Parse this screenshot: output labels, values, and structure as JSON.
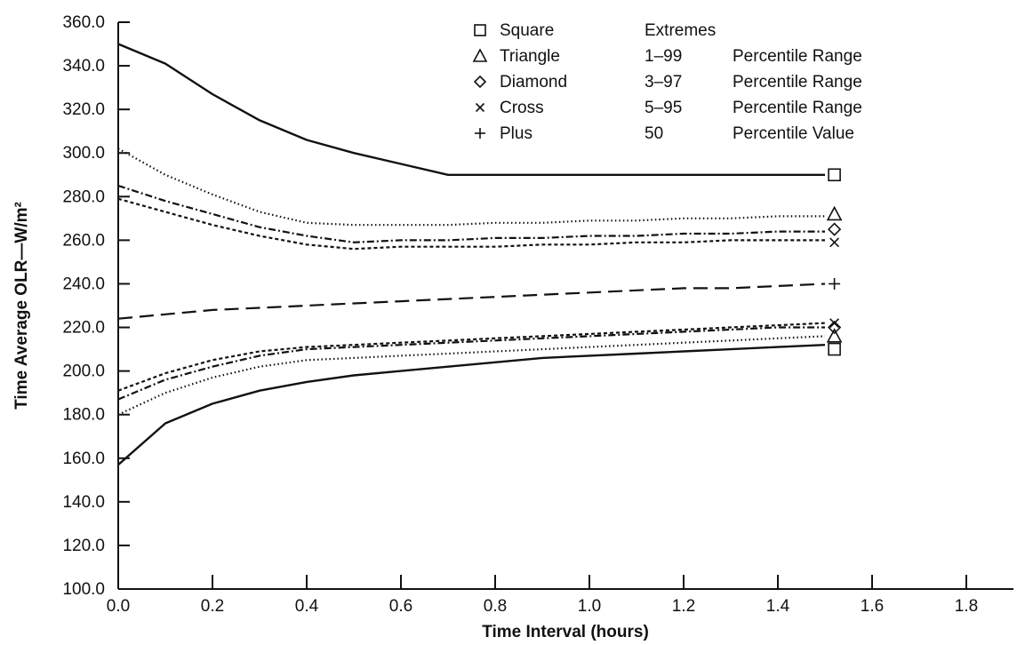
{
  "chart_data": {
    "type": "line",
    "title": "",
    "xlabel": "Time Interval (hours)",
    "ylabel": "Time Average OLR—W/m²",
    "xlim": [
      0.0,
      1.9
    ],
    "ylim": [
      100.0,
      360.0
    ],
    "xticks": [
      0.0,
      0.2,
      0.4,
      0.6,
      0.8,
      1.0,
      1.2,
      1.4,
      1.6,
      1.8
    ],
    "xtick_labels": [
      "0.0",
      "0.2",
      "0.4",
      "0.6",
      "0.8",
      "1.0",
      "1.2",
      "1.4",
      "1.6",
      "1.8"
    ],
    "yticks": [
      100,
      120,
      140,
      160,
      180,
      200,
      220,
      240,
      260,
      280,
      300,
      320,
      340,
      360
    ],
    "ytick_labels": [
      "100.0",
      "120.0",
      "140.0",
      "160.0",
      "180.0",
      "200.0",
      "220.0",
      "240.0",
      "260.0",
      "280.0",
      "300.0",
      "320.0",
      "340.0",
      "360.0"
    ],
    "grid": false,
    "legend": {
      "placement": "top-center",
      "entries": [
        {
          "symbol": "square",
          "name": "Square",
          "range": "Extremes",
          "kind": ""
        },
        {
          "symbol": "triangle",
          "name": "Triangle",
          "range": "1–99",
          "kind": "Percentile Range"
        },
        {
          "symbol": "diamond",
          "name": "Diamond",
          "range": "3–97",
          "kind": "Percentile Range"
        },
        {
          "symbol": "cross",
          "name": "Cross",
          "range": "5–95",
          "kind": "Percentile Range"
        },
        {
          "symbol": "plus",
          "name": "Plus",
          "range": "50",
          "kind": "Percentile Value"
        }
      ]
    },
    "series": [
      {
        "style": "solid",
        "marker": "square",
        "x": [
          0,
          0.1,
          0.2,
          0.3,
          0.4,
          0.5,
          0.6,
          0.7,
          0.8,
          0.9,
          1.0,
          1.1,
          1.2,
          1.3,
          1.4,
          1.5
        ],
        "values": [
          350,
          341,
          327,
          315,
          306,
          300,
          295,
          290,
          290,
          290,
          290,
          290,
          290,
          290,
          290,
          290
        ]
      },
      {
        "style": "dotted",
        "marker": "triangle",
        "x": [
          0,
          0.1,
          0.2,
          0.3,
          0.4,
          0.5,
          0.6,
          0.7,
          0.8,
          0.9,
          1.0,
          1.1,
          1.2,
          1.3,
          1.4,
          1.5
        ],
        "values": [
          302,
          290,
          281,
          273,
          268,
          267,
          267,
          267,
          268,
          268,
          269,
          269,
          270,
          270,
          271,
          271
        ]
      },
      {
        "style": "dashdot",
        "marker": "diamond",
        "x": [
          0,
          0.1,
          0.2,
          0.3,
          0.4,
          0.5,
          0.6,
          0.7,
          0.8,
          0.9,
          1.0,
          1.1,
          1.2,
          1.3,
          1.4,
          1.5
        ],
        "values": [
          285,
          278,
          272,
          266,
          262,
          259,
          260,
          260,
          261,
          261,
          262,
          262,
          263,
          263,
          264,
          264
        ]
      },
      {
        "style": "dashed-fine",
        "marker": "cross",
        "x": [
          0,
          0.1,
          0.2,
          0.3,
          0.4,
          0.5,
          0.6,
          0.7,
          0.8,
          0.9,
          1.0,
          1.1,
          1.2,
          1.3,
          1.4,
          1.5
        ],
        "values": [
          279,
          273,
          267,
          262,
          258,
          256,
          257,
          257,
          257,
          258,
          258,
          259,
          259,
          260,
          260,
          260
        ]
      },
      {
        "style": "long-dash",
        "marker": "plus",
        "x": [
          0,
          0.1,
          0.2,
          0.3,
          0.4,
          0.5,
          0.6,
          0.7,
          0.8,
          0.9,
          1.0,
          1.1,
          1.2,
          1.3,
          1.4,
          1.5
        ],
        "values": [
          224,
          226,
          228,
          229,
          230,
          231,
          232,
          233,
          234,
          235,
          236,
          237,
          238,
          238,
          239,
          240
        ]
      },
      {
        "style": "dashed-fine",
        "marker": "cross",
        "x": [
          0,
          0.1,
          0.2,
          0.3,
          0.4,
          0.5,
          0.6,
          0.7,
          0.8,
          0.9,
          1.0,
          1.1,
          1.2,
          1.3,
          1.4,
          1.5
        ],
        "values": [
          191,
          199,
          205,
          209,
          211,
          212,
          213,
          214,
          215,
          216,
          217,
          218,
          219,
          220,
          221,
          222
        ]
      },
      {
        "style": "dashdot",
        "marker": "diamond",
        "x": [
          0,
          0.1,
          0.2,
          0.3,
          0.4,
          0.5,
          0.6,
          0.7,
          0.8,
          0.9,
          1.0,
          1.1,
          1.2,
          1.3,
          1.4,
          1.5
        ],
        "values": [
          187,
          196,
          202,
          207,
          210,
          211,
          212,
          213,
          214,
          215,
          216,
          217,
          218,
          219,
          220,
          220
        ]
      },
      {
        "style": "dotted",
        "marker": "triangle",
        "x": [
          0,
          0.1,
          0.2,
          0.3,
          0.4,
          0.5,
          0.6,
          0.7,
          0.8,
          0.9,
          1.0,
          1.1,
          1.2,
          1.3,
          1.4,
          1.5
        ],
        "values": [
          180,
          190,
          197,
          202,
          205,
          206,
          207,
          208,
          209,
          210,
          211,
          212,
          213,
          214,
          215,
          216
        ]
      },
      {
        "style": "solid",
        "marker": "square",
        "x": [
          0,
          0.1,
          0.2,
          0.3,
          0.4,
          0.5,
          0.6,
          0.7,
          0.8,
          0.9,
          1.0,
          1.1,
          1.2,
          1.3,
          1.4,
          1.5
        ],
        "values": [
          157,
          176,
          185,
          191,
          195,
          198,
          200,
          202,
          204,
          206,
          207,
          208,
          209,
          210,
          211,
          212
        ]
      }
    ],
    "end_markers": [
      {
        "marker": "square",
        "x": 1.52,
        "y": 290
      },
      {
        "marker": "triangle",
        "x": 1.52,
        "y": 272
      },
      {
        "marker": "diamond",
        "x": 1.52,
        "y": 265
      },
      {
        "marker": "cross",
        "x": 1.52,
        "y": 259
      },
      {
        "marker": "plus",
        "x": 1.52,
        "y": 240
      },
      {
        "marker": "cross",
        "x": 1.52,
        "y": 222
      },
      {
        "marker": "diamond",
        "x": 1.52,
        "y": 220
      },
      {
        "marker": "triangle",
        "x": 1.52,
        "y": 216
      },
      {
        "marker": "square",
        "x": 1.52,
        "y": 210
      }
    ]
  }
}
